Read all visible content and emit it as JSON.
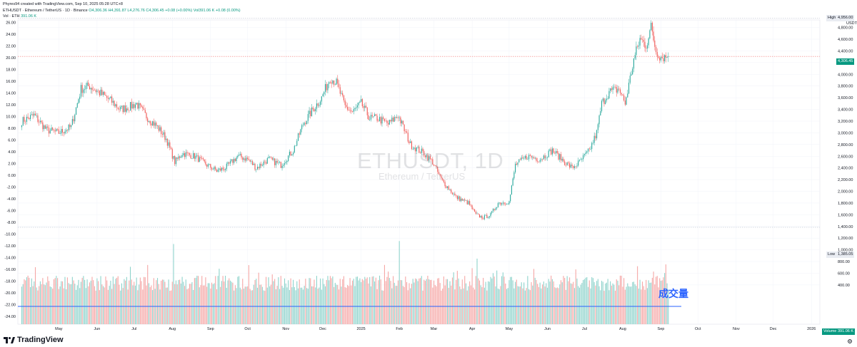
{
  "header": {
    "credit": "Phyres94 created with TradingView.com, Sep 10, 2025 05:28 UTC+8",
    "symbol_line": "ETHUSDT · Ethereum / TetherUS · 1D · Binance",
    "ohlc": "O4,306.36 H4,391.87 L4,276.76 C4,306.45 +0.08 (+0.00%)",
    "vol_label": "Vol · ETH",
    "vol_value": "391.06 K",
    "vol_legend": "Vol391.06 K +0.08 (0.00%)"
  },
  "watermark": {
    "symbol": "ETHUSDT, 1D",
    "name": "Ethereum / TetherUS"
  },
  "annotation": "成交量",
  "brand": "TradingView",
  "axis_unit": "USDT",
  "tags": {
    "high": "High",
    "high_value": "4,956.00",
    "last_value": "4,306.45",
    "low": "Low",
    "low_value": "1,385.05",
    "volume": "Volume",
    "volume_value": "391.06 K"
  },
  "colors": {
    "up": "#26a69a",
    "down": "#ef5350",
    "up_vol": "#8fd3cc",
    "down_vol": "#f5a7a6",
    "line": "#2962ff"
  },
  "chart_data": {
    "type": "candlestick",
    "symbol": "ETHUSDT",
    "interval": "1D",
    "right_axis": {
      "unit": "USDT",
      "ticks": [
        "4,800.00",
        "4,600.00",
        "4,400.00",
        "4,200.00",
        "4,000.00",
        "3,800.00",
        "3,600.00",
        "3,400.00",
        "3,200.00",
        "3,000.00",
        "2,800.00",
        "2,600.00",
        "2,400.00",
        "2,200.00",
        "2,000.00",
        "1,800.00",
        "1,600.00",
        "1,400.00",
        "1,200.00",
        "1,000.00",
        "800.00",
        "600.00",
        "400.00"
      ],
      "tick_values": [
        4800,
        4600,
        4400,
        4200,
        4000,
        3800,
        3600,
        3400,
        3200,
        3000,
        2800,
        2600,
        2400,
        2200,
        2000,
        1800,
        1600,
        1400,
        1200,
        1000,
        800,
        600,
        400
      ]
    },
    "left_axis": {
      "ticks": [
        "26.00",
        "24.00",
        "22.00",
        "20.00",
        "18.00",
        "16.00",
        "14.00",
        "12.00",
        "10.00",
        "8.00",
        "6.00",
        "4.00",
        "2.00",
        "0.00",
        "-2.00",
        "-4.00",
        "-6.00",
        "-8.00",
        "-10.00",
        "-12.00",
        "-14.00",
        "-16.00",
        "-18.00",
        "-20.00",
        "-22.00",
        "-24.00"
      ],
      "tick_values": [
        26,
        24,
        22,
        20,
        18,
        16,
        14,
        12,
        10,
        8,
        6,
        4,
        2,
        0,
        -2,
        -4,
        -6,
        -8,
        -10,
        -12,
        -14,
        -16,
        -18,
        -20,
        -22,
        -24
      ]
    },
    "x_axis": {
      "ticks": [
        "May",
        "Jun",
        "Jul",
        "Aug",
        "Sep",
        "Oct",
        "Nov",
        "Dec",
        "2025",
        "Feb",
        "Mar",
        "Apr",
        "May",
        "Jun",
        "Jul",
        "Aug",
        "Sep",
        "Oct",
        "Nov",
        "Dec",
        "2026"
      ],
      "tick_days": [
        30,
        61,
        91,
        122,
        153,
        183,
        214,
        244,
        275,
        306,
        334,
        365,
        395,
        426,
        456,
        487,
        518,
        548,
        579,
        609,
        640
      ]
    },
    "start_date": "2024-04-01",
    "price_levels": {
      "high": 4956.0,
      "last": 4306.45,
      "low": 1385.05
    },
    "volume_line_left_axis": -22.3,
    "anchors": [
      {
        "day": 0,
        "close": 3200
      },
      {
        "day": 10,
        "close": 3300
      },
      {
        "day": 20,
        "close": 3050
      },
      {
        "day": 30,
        "close": 3000
      },
      {
        "day": 40,
        "close": 3100
      },
      {
        "day": 48,
        "close": 3750
      },
      {
        "day": 55,
        "close": 3800
      },
      {
        "day": 62,
        "close": 3700
      },
      {
        "day": 72,
        "close": 3550
      },
      {
        "day": 80,
        "close": 3400
      },
      {
        "day": 88,
        "close": 3450
      },
      {
        "day": 93,
        "close": 3500
      },
      {
        "day": 100,
        "close": 3300
      },
      {
        "day": 110,
        "close": 3100
      },
      {
        "day": 117,
        "close": 2900
      },
      {
        "day": 124,
        "close": 2500
      },
      {
        "day": 130,
        "close": 2650
      },
      {
        "day": 140,
        "close": 2600
      },
      {
        "day": 150,
        "close": 2450
      },
      {
        "day": 158,
        "close": 2350
      },
      {
        "day": 165,
        "close": 2400
      },
      {
        "day": 175,
        "close": 2600
      },
      {
        "day": 183,
        "close": 2550
      },
      {
        "day": 190,
        "close": 2400
      },
      {
        "day": 200,
        "close": 2550
      },
      {
        "day": 210,
        "close": 2450
      },
      {
        "day": 220,
        "close": 2700
      },
      {
        "day": 228,
        "close": 3150
      },
      {
        "day": 236,
        "close": 3400
      },
      {
        "day": 243,
        "close": 3600
      },
      {
        "day": 250,
        "close": 3950
      },
      {
        "day": 255,
        "close": 3850
      },
      {
        "day": 262,
        "close": 3450
      },
      {
        "day": 268,
        "close": 3350
      },
      {
        "day": 275,
        "close": 3500
      },
      {
        "day": 282,
        "close": 3250
      },
      {
        "day": 288,
        "close": 3250
      },
      {
        "day": 297,
        "close": 3150
      },
      {
        "day": 305,
        "close": 3300
      },
      {
        "day": 315,
        "close": 2800
      },
      {
        "day": 322,
        "close": 2700
      },
      {
        "day": 326,
        "close": 2650
      },
      {
        "day": 333,
        "close": 2500
      },
      {
        "day": 340,
        "close": 2200
      },
      {
        "day": 348,
        "close": 2000
      },
      {
        "day": 352,
        "close": 1900
      },
      {
        "day": 362,
        "close": 1800
      },
      {
        "day": 368,
        "close": 1600
      },
      {
        "day": 374,
        "close": 1550
      },
      {
        "day": 380,
        "close": 1600
      },
      {
        "day": 386,
        "close": 1800
      },
      {
        "day": 395,
        "close": 1820
      },
      {
        "day": 400,
        "close": 2450
      },
      {
        "day": 410,
        "close": 2600
      },
      {
        "day": 420,
        "close": 2550
      },
      {
        "day": 430,
        "close": 2700
      },
      {
        "day": 440,
        "close": 2500
      },
      {
        "day": 446,
        "close": 2400
      },
      {
        "day": 452,
        "close": 2500
      },
      {
        "day": 460,
        "close": 2700
      },
      {
        "day": 466,
        "close": 3000
      },
      {
        "day": 470,
        "close": 3500
      },
      {
        "day": 476,
        "close": 3700
      },
      {
        "day": 484,
        "close": 3750
      },
      {
        "day": 489,
        "close": 3500
      },
      {
        "day": 496,
        "close": 4250
      },
      {
        "day": 501,
        "close": 4600
      },
      {
        "day": 506,
        "close": 4500
      },
      {
        "day": 510,
        "close": 4800
      },
      {
        "day": 514,
        "close": 4400
      },
      {
        "day": 518,
        "close": 4300
      },
      {
        "day": 524,
        "close": 4306
      }
    ],
    "volume_spikes": [
      {
        "day": 123,
        "value": 1100
      },
      {
        "day": 306,
        "value": 1150
      },
      {
        "day": 369,
        "value": 850
      },
      {
        "day": 499,
        "value": 720
      }
    ]
  }
}
